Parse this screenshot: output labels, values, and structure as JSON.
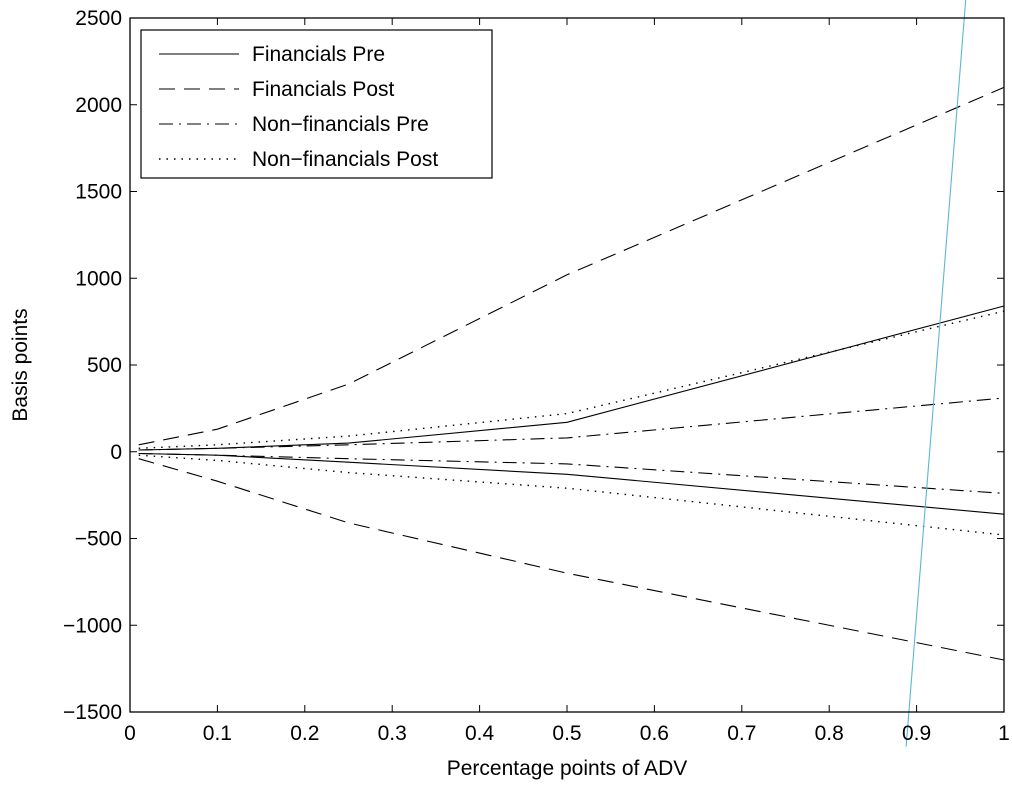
{
  "chart_data": {
    "type": "line",
    "title": "",
    "xlabel": "Percentage points of ADV",
    "ylabel": "Basis points",
    "xlim": [
      0,
      1
    ],
    "ylim": [
      -1500,
      2500
    ],
    "xticks": [
      "0",
      "0.1",
      "0.2",
      "0.3",
      "0.4",
      "0.5",
      "0.6",
      "0.7",
      "0.8",
      "0.9",
      "1"
    ],
    "yticks": [
      "2500",
      "2000",
      "1500",
      "1000",
      "500",
      "0",
      "−500",
      "−1000",
      "−1500"
    ],
    "xtick_values": [
      0,
      0.1,
      0.2,
      0.3,
      0.4,
      0.5,
      0.6,
      0.7,
      0.8,
      0.9,
      1
    ],
    "ytick_values": [
      2500,
      2000,
      1500,
      1000,
      500,
      0,
      -500,
      -1000,
      -1500
    ],
    "grid": false,
    "legend_position": "top-left",
    "legend": [
      "Financials Pre",
      "Financials Post",
      "Non−financials Pre",
      "Non−financials Post"
    ],
    "series": [
      {
        "name": "Financials Pre",
        "style": "solid",
        "x": [
          0.01,
          0.1,
          0.25,
          0.5,
          1
        ],
        "y": [
          10,
          20,
          50,
          170,
          840
        ]
      },
      {
        "name": "Financials Pre",
        "style": "solid",
        "x": [
          0.01,
          0.1,
          0.25,
          0.5,
          1
        ],
        "y": [
          -10,
          -20,
          -60,
          -130,
          -360
        ]
      },
      {
        "name": "Financials Post",
        "style": "dashed",
        "x": [
          0.01,
          0.1,
          0.25,
          0.5,
          1
        ],
        "y": [
          40,
          130,
          390,
          1020,
          2100
        ]
      },
      {
        "name": "Financials Post",
        "style": "dashed",
        "x": [
          0.01,
          0.1,
          0.25,
          0.5,
          1
        ],
        "y": [
          -40,
          -170,
          -410,
          -700,
          -1200
        ]
      },
      {
        "name": "Non−financials Pre",
        "style": "dashdot",
        "x": [
          0.01,
          0.1,
          0.25,
          0.5,
          1
        ],
        "y": [
          10,
          20,
          40,
          80,
          310
        ]
      },
      {
        "name": "Non−financials Pre",
        "style": "dashdot",
        "x": [
          0.01,
          0.1,
          0.25,
          0.5,
          1
        ],
        "y": [
          -10,
          -20,
          -40,
          -70,
          -240
        ]
      },
      {
        "name": "Non−financials Post",
        "style": "dotted",
        "x": [
          0.01,
          0.1,
          0.25,
          0.5,
          1
        ],
        "y": [
          20,
          40,
          90,
          220,
          810
        ]
      },
      {
        "name": "Non−financials Post",
        "style": "dotted",
        "x": [
          0.01,
          0.1,
          0.25,
          0.5,
          1
        ],
        "y": [
          -20,
          -50,
          -120,
          -210,
          -480
        ]
      }
    ],
    "annotation_line": {
      "color": "#5bb6d6",
      "x": [
        0.888,
        0.958
      ],
      "y": [
        -1700,
        2720
      ]
    }
  }
}
